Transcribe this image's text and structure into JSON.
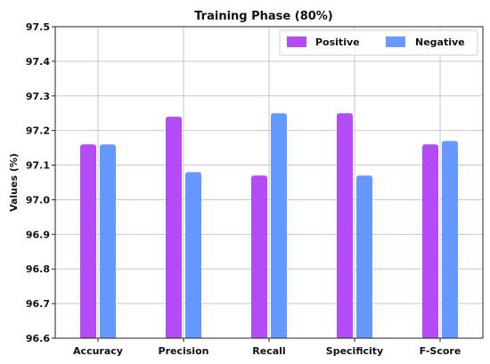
{
  "chart_data": {
    "type": "bar",
    "title": "Training Phase (80%)",
    "xlabel": "",
    "ylabel": "Values (%)",
    "ylim": [
      96.6,
      97.5
    ],
    "yticks": [
      "96.6",
      "96.7",
      "96.8",
      "96.9",
      "97.0",
      "97.1",
      "97.2",
      "97.3",
      "97.4",
      "97.5"
    ],
    "categories": [
      "Accuracy",
      "Precision",
      "Recall",
      "Specificity",
      "F-Score"
    ],
    "series": [
      {
        "name": "Positive",
        "color": "#b44cf5",
        "values": [
          97.16,
          97.24,
          97.07,
          97.25,
          97.16
        ]
      },
      {
        "name": "Negative",
        "color": "#6699ff",
        "values": [
          97.16,
          97.08,
          97.25,
          97.07,
          97.17
        ]
      }
    ],
    "grid": true,
    "legend_position": "top-right"
  }
}
